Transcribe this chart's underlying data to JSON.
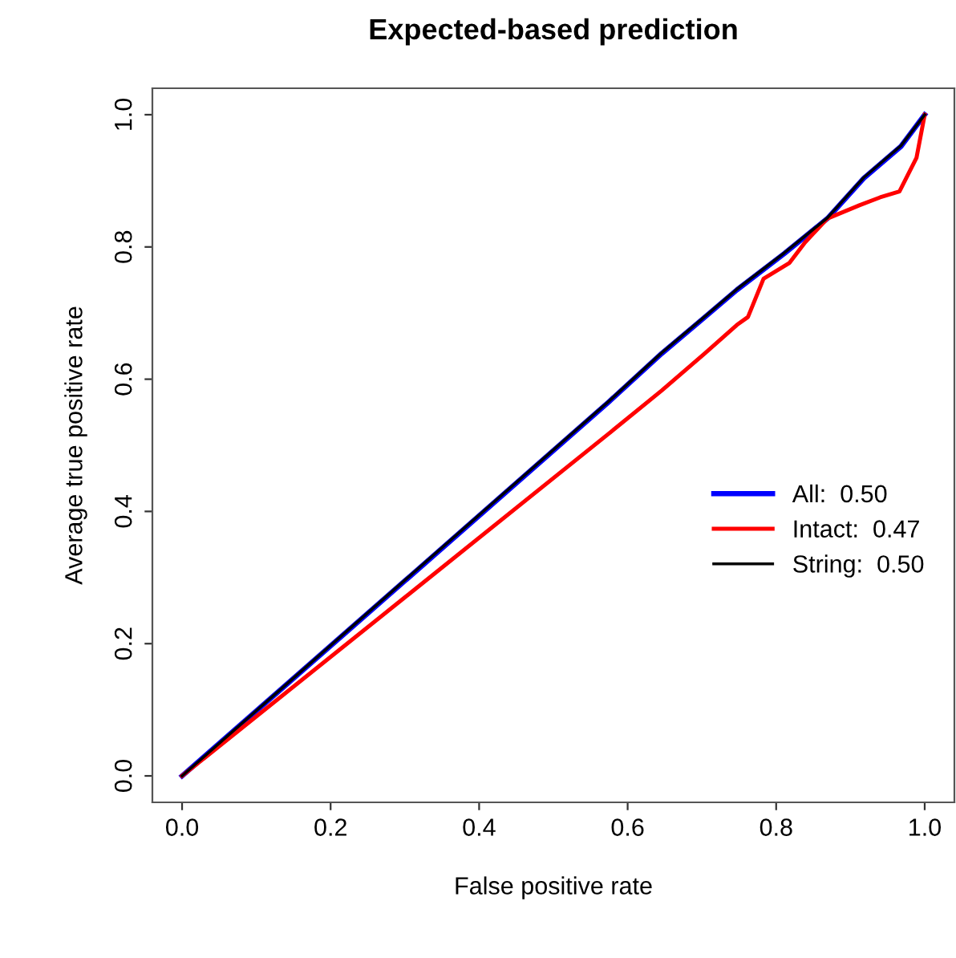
{
  "chart_data": {
    "type": "line",
    "title": "Expected-based prediction",
    "xlabel": "False positive rate",
    "ylabel": "Average true positive rate",
    "xlim": [
      -0.04,
      1.04
    ],
    "ylim": [
      -0.04,
      1.04
    ],
    "xticks": [
      {
        "value": 0,
        "label": "0.0"
      },
      0.2,
      0.4,
      0.6,
      0.8,
      {
        "value": 1,
        "label": "1.0"
      }
    ],
    "yticks": [
      {
        "value": 0,
        "label": "0.0"
      },
      0.2,
      0.4,
      0.6,
      0.8,
      {
        "value": 1,
        "label": "1.0"
      }
    ],
    "grid": false,
    "legend": "right",
    "marker": "none",
    "line_style": "solid",
    "series": [
      {
        "name": "All:  0.50",
        "color": "#0000ff",
        "x": [
          0,
          0.3,
          0.575,
          0.646,
          0.7,
          0.747,
          0.811,
          0.869,
          0.918,
          0.968,
          1
        ],
        "values": [
          0,
          0.295,
          0.566,
          0.639,
          0.69,
          0.735,
          0.79,
          0.843,
          0.904,
          0.952,
          1
        ]
      },
      {
        "name": "Intact:  0.47",
        "color": "#ff0000",
        "x": [
          0,
          0.3,
          0.575,
          0.646,
          0.704,
          0.747,
          0.762,
          0.783,
          0.818,
          0.839,
          0.869,
          0.912,
          0.94,
          0.966,
          0.989,
          1
        ],
        "values": [
          0,
          0.27,
          0.518,
          0.583,
          0.639,
          0.682,
          0.694,
          0.752,
          0.776,
          0.807,
          0.843,
          0.863,
          0.875,
          0.884,
          0.935,
          1
        ]
      },
      {
        "name": "String:  0.50",
        "color": "#000000",
        "x": [
          0,
          0.3,
          0.575,
          0.646,
          0.7,
          0.747,
          0.811,
          0.869,
          0.918,
          0.968,
          1
        ],
        "values": [
          0,
          0.296,
          0.567,
          0.64,
          0.691,
          0.736,
          0.791,
          0.844,
          0.905,
          0.953,
          1
        ]
      }
    ]
  }
}
